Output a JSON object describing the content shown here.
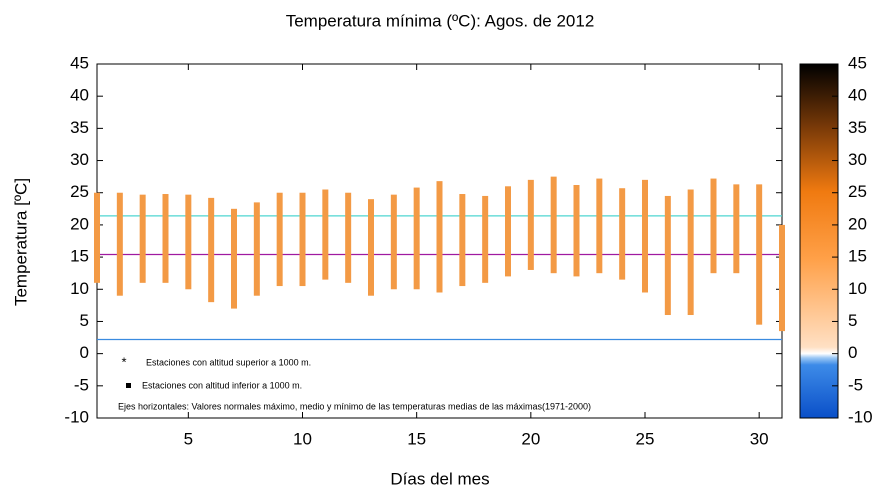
{
  "chart_data": {
    "type": "range",
    "title": "Temperatura mínima  (ºC): Agos.  de  2012",
    "x_label": "Días del mes",
    "y_label": "Temperatura  [ºC]",
    "x": [
      1,
      2,
      3,
      4,
      5,
      6,
      7,
      8,
      9,
      10,
      11,
      12,
      13,
      14,
      15,
      16,
      17,
      18,
      19,
      20,
      21,
      22,
      23,
      24,
      25,
      26,
      27,
      28,
      29,
      30,
      31
    ],
    "high": [
      25,
      25,
      24.7,
      24.8,
      24.7,
      24.2,
      22.5,
      23.5,
      25,
      25,
      25.5,
      25,
      24,
      24.7,
      25.8,
      26.8,
      24.8,
      24.5,
      26,
      27,
      27.5,
      26.2,
      27.2,
      25.7,
      27,
      24.5,
      25.5,
      27.2,
      26.3,
      26.3,
      20
    ],
    "low": [
      11,
      9,
      11,
      11,
      10,
      8,
      7,
      9,
      10.5,
      10.5,
      11.5,
      11,
      9,
      10,
      10,
      9.5,
      10.5,
      11,
      12,
      13,
      12.5,
      12,
      12.5,
      11.5,
      9.5,
      6,
      6,
      12.5,
      12.5,
      4.5,
      3.5
    ],
    "color": "#f39a45",
    "reference_lines": [
      {
        "value": 21.4,
        "color": "#4fd6d0"
      },
      {
        "value": 15.4,
        "color": "#a01aa0"
      },
      {
        "value": 2.2,
        "color": "#3a8be0"
      }
    ],
    "notes": [
      "Estaciones con altitud superior a 1000 m.",
      "Estaciones con altitud inferior a 1000 m.",
      "Ejes horizontales: Valores normales máximo, medio y mínimo de las temperaturas medias de las máximas(1971-2000)"
    ],
    "xlim": [
      1,
      31
    ],
    "xticks": [
      5,
      10,
      15,
      20,
      25,
      30
    ],
    "ylim": [
      -10,
      45
    ],
    "yticks": [
      -10,
      -5,
      0,
      5,
      10,
      15,
      20,
      25,
      30,
      35,
      40,
      45
    ],
    "colorbar_lim": [
      -10,
      45
    ],
    "colorbar_ticks": [
      -10,
      -5,
      0,
      5,
      10,
      15,
      20,
      25,
      30,
      35,
      40,
      45
    ]
  }
}
